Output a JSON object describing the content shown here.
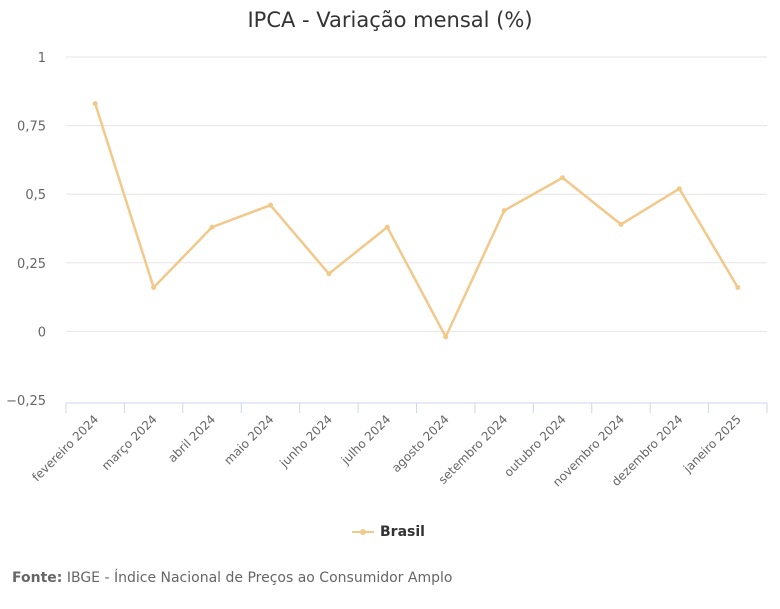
{
  "chart_data": {
    "type": "line",
    "title": "IPCA - Variação mensal (%)",
    "categories": [
      "fevereiro 2024",
      "março 2024",
      "abril 2024",
      "maio 2024",
      "junho 2024",
      "julho 2024",
      "agosto 2024",
      "setembro 2024",
      "outubro 2024",
      "novembro 2024",
      "dezembro 2024",
      "janeiro 2025"
    ],
    "series": [
      {
        "name": "Brasil",
        "values": [
          0.83,
          0.16,
          0.38,
          0.46,
          0.21,
          0.38,
          -0.02,
          0.44,
          0.56,
          0.39,
          0.52,
          0.16
        ],
        "color": "#f2c98a"
      }
    ],
    "ylim": [
      -0.25,
      1
    ],
    "yticks": [
      -0.25,
      0,
      0.25,
      0.5,
      0.75,
      1
    ],
    "ytick_labels": [
      "−0,25",
      "0",
      "0,25",
      "0,5",
      "0,75",
      "1"
    ],
    "grid": true,
    "legend": "bottom-center"
  },
  "source": {
    "label": "Fonte:",
    "text": "IBGE - Índice Nacional de Preços ao Consumidor Amplo"
  }
}
